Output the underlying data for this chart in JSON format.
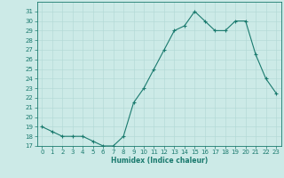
{
  "x": [
    0,
    1,
    2,
    3,
    4,
    5,
    6,
    7,
    8,
    9,
    10,
    11,
    12,
    13,
    14,
    15,
    16,
    17,
    18,
    19,
    20,
    21,
    22,
    23
  ],
  "y": [
    19,
    18.5,
    18,
    18,
    18,
    17.5,
    17,
    17,
    18,
    21.5,
    23,
    25,
    27,
    29,
    29.5,
    31,
    30,
    29,
    29,
    30,
    30,
    26.5,
    24,
    22.5
  ],
  "line_color": "#1a7a6e",
  "marker": "+",
  "marker_size": 3,
  "marker_lw": 0.8,
  "line_width": 0.8,
  "bg_color": "#cceae7",
  "grid_color": "#b0d8d4",
  "xlabel": "Humidex (Indice chaleur)",
  "xlabel_fontsize": 5.5,
  "tick_fontsize": 5,
  "ylim": [
    17,
    32
  ],
  "yticks": [
    17,
    18,
    19,
    20,
    21,
    22,
    23,
    24,
    25,
    26,
    27,
    28,
    29,
    30,
    31
  ],
  "xticks": [
    0,
    1,
    2,
    3,
    4,
    5,
    6,
    7,
    8,
    9,
    10,
    11,
    12,
    13,
    14,
    15,
    16,
    17,
    18,
    19,
    20,
    21,
    22,
    23
  ],
  "xlim": [
    -0.5,
    23.5
  ],
  "axis_color": "#1a7a6e",
  "spine_lw": 0.6
}
